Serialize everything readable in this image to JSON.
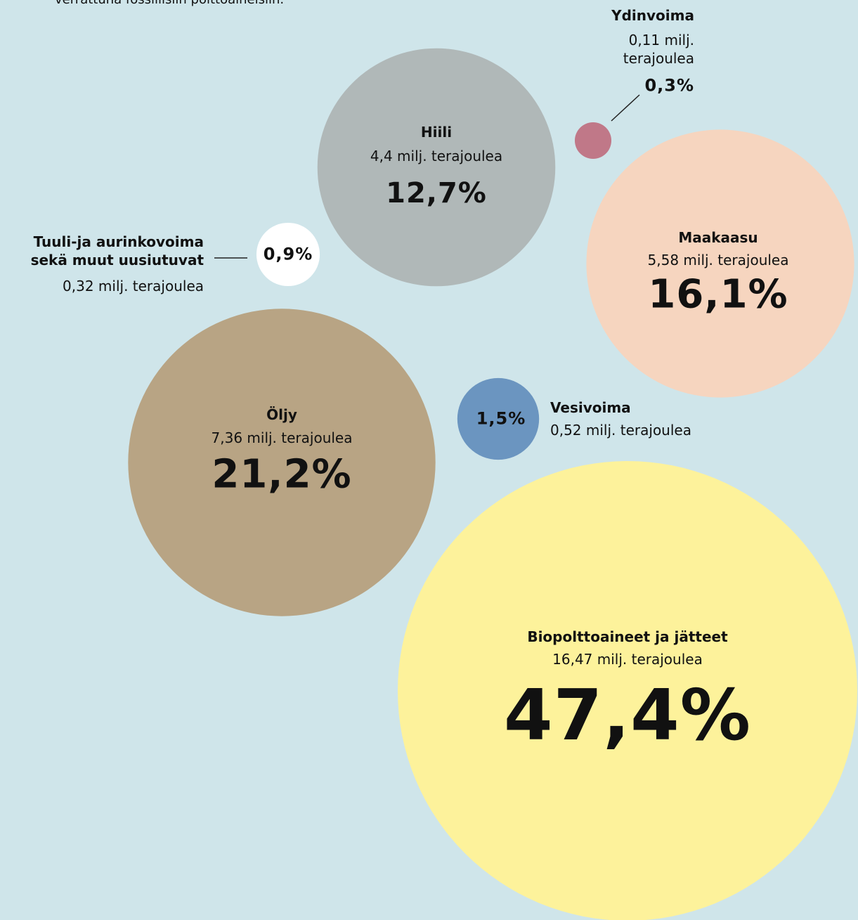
{
  "note": "verrattuna fossiilisiin polttoaineisiin.",
  "chart_data": {
    "type": "bubble",
    "categories": [
      "Hiili",
      "Ydinvoima",
      "Maakaasu",
      "Tuuli-ja aurinkovoima sekä muut uusiutuvat",
      "Öljy",
      "Vesivoima",
      "Biopolttoaineet ja jätteet"
    ],
    "values": [
      12.7,
      0.3,
      16.1,
      0.9,
      21.2,
      1.5,
      47.4
    ],
    "value_labels": [
      "12,7%",
      "0,3%",
      "16,1%",
      "0,9%",
      "21,2%",
      "1,5%",
      "47,4%"
    ],
    "amounts": [
      4.4,
      0.11,
      5.58,
      0.32,
      7.36,
      0.52,
      16.47
    ],
    "amount_labels": [
      "4,4 milj. terajoulea",
      "0,11 milj. terajoulea",
      "5,58 milj. terajoulea",
      "0,32 milj. terajoulea",
      "7,36 milj. terajoulea",
      "0,52 milj. terajoulea",
      "16,47 milj. terajoulea"
    ],
    "colors": [
      "#b0b8b8",
      "#c07888",
      "#f6d5bf",
      "#ffffff",
      "#b8a484",
      "#6b95c0",
      "#fdf29b"
    ]
  }
}
